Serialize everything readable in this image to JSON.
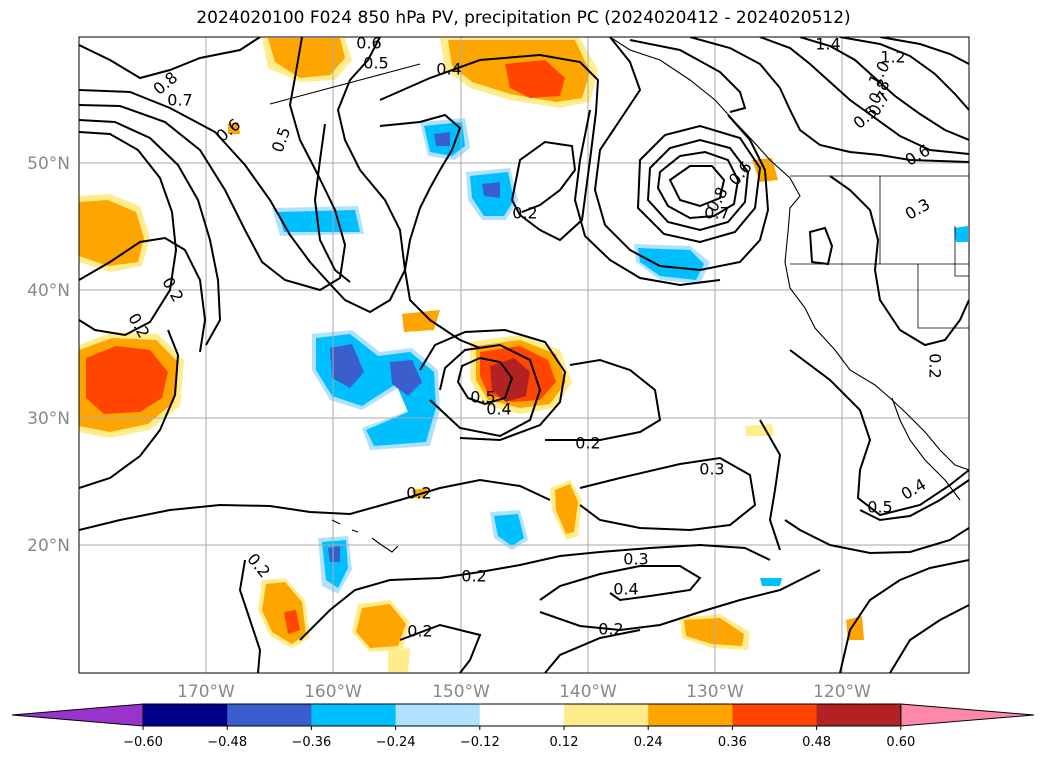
{
  "title": "2024020100 F024 850 hPa PV, precipitation PC (2024020412 - 2024020512)",
  "lat_labels": [
    "50°N",
    "40°N",
    "30°N",
    "20°N"
  ],
  "lon_labels": [
    "170°W",
    "160°W",
    "150°W",
    "140°W",
    "130°W",
    "120°W"
  ],
  "contour_labels": [
    "0.6",
    "0.5",
    "0.4",
    "0.8",
    "0.7",
    "0.6",
    "0.5",
    "1.4",
    "1.2",
    "1.0",
    "0.8",
    "0.7",
    "0.5",
    "0.6",
    "0.3",
    "0.8",
    "0.7",
    "0.6",
    "0.2",
    "0.2",
    "0.2",
    "0.5",
    "0.4",
    "0.2",
    "0.3",
    "0.2",
    "0.5",
    "0.4",
    "0.2",
    "0.3",
    "0.4",
    "0.2",
    "0.2",
    "0.2",
    "0.2"
  ],
  "colorbar": {
    "ticks": [
      "−0.60",
      "−0.48",
      "−0.36",
      "−0.24",
      "−0.12",
      "0.12",
      "0.24",
      "0.36",
      "0.48",
      "0.60"
    ],
    "colors": [
      "#9a32cd",
      "#00008b",
      "#3a5fcd",
      "#00bfff",
      "#b0e2ff",
      "#ffffff",
      "#ffec8b",
      "#ffa500",
      "#ff4500",
      "#b22222",
      "#ff88aa"
    ]
  },
  "palette": {
    "neg_1": "#b0e2ff",
    "neg_2": "#00bfff",
    "neg_3": "#3a5fcd",
    "pos_1": "#ffec8b",
    "pos_2": "#ffa500",
    "pos_3": "#ff4500",
    "pos_4": "#b22222"
  }
}
